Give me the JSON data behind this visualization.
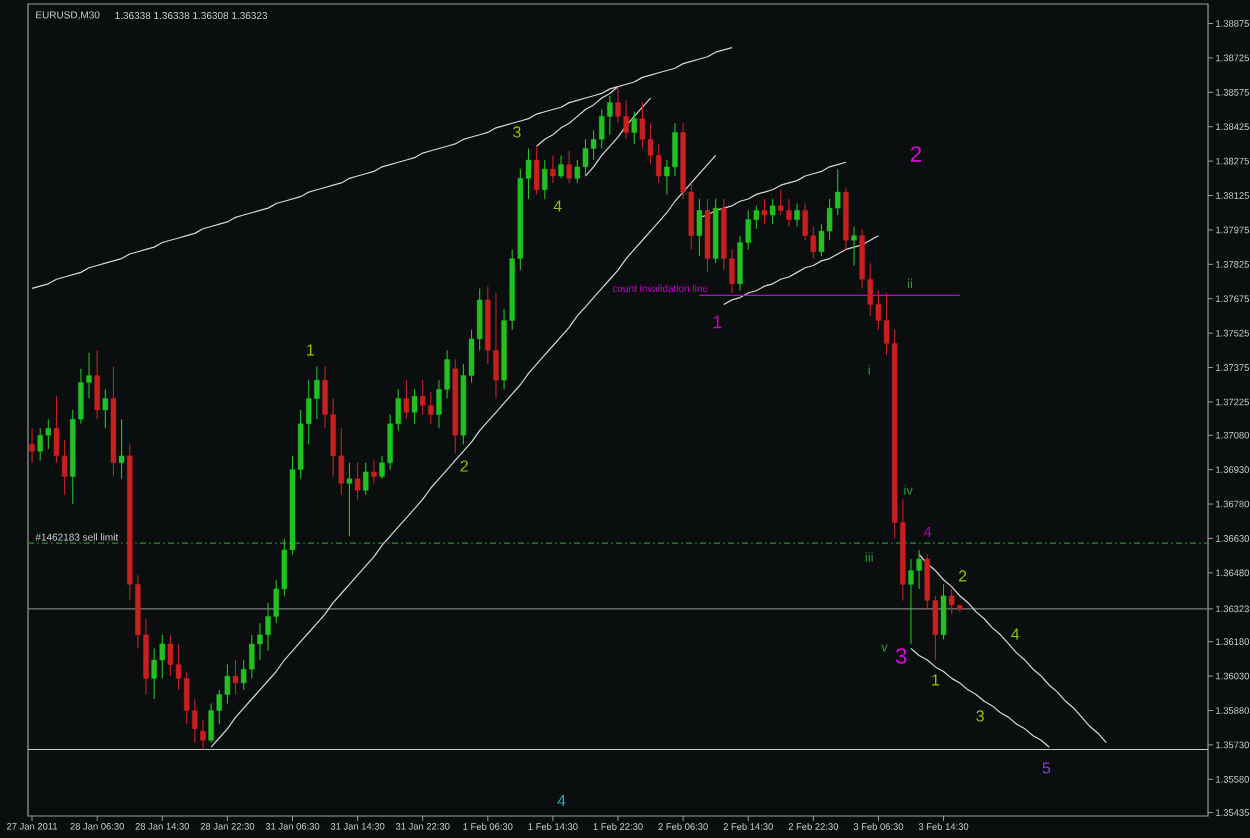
{
  "chart_data": {
    "type": "candlestick",
    "title": "EURUSD,M30",
    "subtitle": "1.36338 1.36338 1.36308 1.36323",
    "categories": [
      "27 Jan 2011",
      null,
      null,
      null,
      null,
      null,
      null,
      null,
      "28 Jan 06:30",
      null,
      null,
      null,
      null,
      null,
      null,
      null,
      "28 Jan 14:30",
      null,
      null,
      null,
      null,
      null,
      null,
      null,
      "28 Jan 22:30",
      null,
      null,
      null,
      null,
      null,
      null,
      null,
      "31 Jan 06:30",
      null,
      null,
      null,
      null,
      null,
      null,
      null,
      "31 Jan 14:30",
      null,
      null,
      null,
      null,
      null,
      null,
      null,
      "31 Jan 22:30",
      null,
      null,
      null,
      null,
      null,
      null,
      null,
      "1 Feb 06:30",
      null,
      null,
      null,
      null,
      null,
      null,
      null,
      "1 Feb 14:30",
      null,
      null,
      null,
      null,
      null,
      null,
      null,
      "1 Feb 22:30",
      null,
      null,
      null,
      null,
      null,
      null,
      null,
      "2 Feb 06:30",
      null,
      null,
      null,
      null,
      null,
      null,
      null,
      "2 Feb 14:30",
      null,
      null,
      null,
      null,
      null,
      null,
      null,
      "2 Feb 22:30",
      null,
      null,
      null,
      null,
      null,
      null,
      null,
      "3 Feb 06:30",
      null,
      null,
      null,
      null,
      null,
      null,
      null,
      "3 Feb 14:30",
      null,
      null,
      null,
      null,
      null,
      null,
      null,
      null,
      null,
      null,
      null,
      null,
      null,
      null,
      null,
      null,
      null,
      null,
      null,
      null,
      null,
      null,
      null,
      null,
      null,
      null,
      null,
      null,
      null,
      null,
      null,
      null
    ],
    "ohlc": [
      [
        1.3704,
        1.3711,
        1.3696,
        1.3701
      ],
      [
        1.3701,
        1.3711,
        1.3697,
        1.3708
      ],
      [
        1.3708,
        1.3715,
        1.3702,
        1.3711
      ],
      [
        1.3711,
        1.3725,
        1.3696,
        1.3699
      ],
      [
        1.3699,
        1.3706,
        1.3682,
        1.369
      ],
      [
        1.369,
        1.3719,
        1.3678,
        1.3715
      ],
      [
        1.3715,
        1.3737,
        1.3713,
        1.3731
      ],
      [
        1.3731,
        1.3744,
        1.3724,
        1.3734
      ],
      [
        1.3734,
        1.3745,
        1.3715,
        1.3719
      ],
      [
        1.3719,
        1.3728,
        1.3711,
        1.3724
      ],
      [
        1.3724,
        1.3738,
        1.369,
        1.3696
      ],
      [
        1.3696,
        1.3715,
        1.3689,
        1.3699
      ],
      [
        1.3699,
        1.3704,
        1.3636,
        1.3643
      ],
      [
        1.3643,
        1.3647,
        1.3615,
        1.3621
      ],
      [
        1.3621,
        1.3628,
        1.3595,
        1.3602
      ],
      [
        1.3602,
        1.3615,
        1.3593,
        1.361
      ],
      [
        1.361,
        1.3621,
        1.3602,
        1.3617
      ],
      [
        1.3617,
        1.3621,
        1.3603,
        1.3608
      ],
      [
        1.3608,
        1.3617,
        1.3597,
        1.3602
      ],
      [
        1.3602,
        1.3605,
        1.3582,
        1.3588
      ],
      [
        1.3588,
        1.3593,
        1.3574,
        1.358
      ],
      [
        1.3579,
        1.3584,
        1.3571,
        1.3575
      ],
      [
        1.3575,
        1.3591,
        1.3574,
        1.3588
      ],
      [
        1.3588,
        1.3597,
        1.3582,
        1.3595
      ],
      [
        1.3595,
        1.3608,
        1.3591,
        1.3603
      ],
      [
        1.3603,
        1.361,
        1.3595,
        1.36
      ],
      [
        1.36,
        1.361,
        1.3597,
        1.3606
      ],
      [
        1.3606,
        1.3621,
        1.3602,
        1.3617
      ],
      [
        1.3617,
        1.3626,
        1.361,
        1.3621
      ],
      [
        1.3621,
        1.3635,
        1.3614,
        1.3629
      ],
      [
        1.3629,
        1.3645,
        1.3626,
        1.3641
      ],
      [
        1.3641,
        1.3663,
        1.3638,
        1.3658
      ],
      [
        1.3658,
        1.3699,
        1.3656,
        1.3693
      ],
      [
        1.3693,
        1.3719,
        1.3689,
        1.3713
      ],
      [
        1.3713,
        1.3732,
        1.3704,
        1.3724
      ],
      [
        1.3724,
        1.3738,
        1.3715,
        1.3732
      ],
      [
        1.3732,
        1.3738,
        1.3711,
        1.3717
      ],
      [
        1.3717,
        1.3724,
        1.369,
        1.3699
      ],
      [
        1.3699,
        1.3711,
        1.3682,
        1.3687
      ],
      [
        1.3687,
        1.3696,
        1.3664,
        1.3689
      ],
      [
        1.3689,
        1.3696,
        1.368,
        1.3684
      ],
      [
        1.3684,
        1.3696,
        1.3682,
        1.3692
      ],
      [
        1.3692,
        1.3697,
        1.3687,
        1.369
      ],
      [
        1.369,
        1.3699,
        1.3689,
        1.3696
      ],
      [
        1.3696,
        1.3717,
        1.3693,
        1.3713
      ],
      [
        1.3713,
        1.3728,
        1.371,
        1.3724
      ],
      [
        1.3724,
        1.3732,
        1.3715,
        1.3718
      ],
      [
        1.3718,
        1.3728,
        1.3713,
        1.3725
      ],
      [
        1.3725,
        1.3732,
        1.3717,
        1.3721
      ],
      [
        1.3721,
        1.3727,
        1.3713,
        1.3717
      ],
      [
        1.3717,
        1.3732,
        1.3711,
        1.3728
      ],
      [
        1.3728,
        1.3745,
        1.3724,
        1.3741
      ],
      [
        1.3737,
        1.3741,
        1.37,
        1.3708
      ],
      [
        1.3708,
        1.3739,
        1.3704,
        1.3734
      ],
      [
        1.3734,
        1.3754,
        1.3731,
        1.375
      ],
      [
        1.375,
        1.3772,
        1.3745,
        1.3767
      ],
      [
        1.3767,
        1.3773,
        1.3739,
        1.3745
      ],
      [
        1.3745,
        1.377,
        1.3724,
        1.3732
      ],
      [
        1.3732,
        1.3763,
        1.3728,
        1.3758
      ],
      [
        1.3758,
        1.3789,
        1.3754,
        1.3785
      ],
      [
        1.3785,
        1.3824,
        1.378,
        1.382
      ],
      [
        1.382,
        1.3833,
        1.3811,
        1.3828
      ],
      [
        1.3828,
        1.3834,
        1.3813,
        1.3815
      ],
      [
        1.3815,
        1.3828,
        1.3811,
        1.3824
      ],
      [
        1.3824,
        1.383,
        1.3818,
        1.3821
      ],
      [
        1.3821,
        1.383,
        1.382,
        1.3826
      ],
      [
        1.3826,
        1.3832,
        1.3818,
        1.382
      ],
      [
        1.382,
        1.3828,
        1.3818,
        1.3825
      ],
      [
        1.3825,
        1.3837,
        1.3821,
        1.3833
      ],
      [
        1.3833,
        1.3841,
        1.3828,
        1.3837
      ],
      [
        1.3837,
        1.385,
        1.3833,
        1.3847
      ],
      [
        1.3847,
        1.3856,
        1.3839,
        1.3853
      ],
      [
        1.3853,
        1.386,
        1.3844,
        1.3847
      ],
      [
        1.3847,
        1.3854,
        1.3837,
        1.384
      ],
      [
        1.384,
        1.3849,
        1.3835,
        1.3846
      ],
      [
        1.3846,
        1.3853,
        1.3833,
        1.3837
      ],
      [
        1.3837,
        1.3844,
        1.3826,
        1.383
      ],
      [
        1.383,
        1.3835,
        1.3818,
        1.3821
      ],
      [
        1.3821,
        1.3828,
        1.3813,
        1.3825
      ],
      [
        1.3825,
        1.3844,
        1.3821,
        1.384
      ],
      [
        1.384,
        1.3844,
        1.3811,
        1.3814
      ],
      [
        1.3814,
        1.3818,
        1.3789,
        1.3795
      ],
      [
        1.3795,
        1.3811,
        1.3786,
        1.3806
      ],
      [
        1.3806,
        1.3811,
        1.3779,
        1.3785
      ],
      [
        1.3785,
        1.3811,
        1.3783,
        1.3807
      ],
      [
        1.3807,
        1.3811,
        1.378,
        1.3785
      ],
      [
        1.3785,
        1.3789,
        1.377,
        1.3774
      ],
      [
        1.3774,
        1.3795,
        1.3771,
        1.3792
      ],
      [
        1.3792,
        1.3806,
        1.3789,
        1.3802
      ],
      [
        1.3802,
        1.3808,
        1.3798,
        1.3806
      ],
      [
        1.3806,
        1.3811,
        1.38,
        1.3804
      ],
      [
        1.3804,
        1.3811,
        1.38,
        1.3808
      ],
      [
        1.3808,
        1.3815,
        1.3804,
        1.3806
      ],
      [
        1.3806,
        1.3811,
        1.3799,
        1.3802
      ],
      [
        1.3802,
        1.3809,
        1.3799,
        1.3806
      ],
      [
        1.3806,
        1.3809,
        1.3793,
        1.3795
      ],
      [
        1.3795,
        1.3799,
        1.3785,
        1.3788
      ],
      [
        1.3788,
        1.38,
        1.3786,
        1.3797
      ],
      [
        1.3797,
        1.3811,
        1.3793,
        1.3807
      ],
      [
        1.3807,
        1.3824,
        1.3804,
        1.3814
      ],
      [
        1.3814,
        1.3816,
        1.3789,
        1.3793
      ],
      [
        1.3793,
        1.3799,
        1.3782,
        1.3795
      ],
      [
        1.3795,
        1.3798,
        1.3772,
        1.3776
      ],
      [
        1.3776,
        1.3783,
        1.376,
        1.3765
      ],
      [
        1.3765,
        1.3771,
        1.3754,
        1.3758
      ],
      [
        1.3758,
        1.377,
        1.3743,
        1.3748
      ],
      [
        1.3748,
        1.3754,
        1.3663,
        1.367
      ],
      [
        1.367,
        1.368,
        1.3636,
        1.3643
      ],
      [
        1.3643,
        1.3654,
        1.3617,
        1.3649
      ],
      [
        1.3649,
        1.3658,
        1.3641,
        1.3654
      ],
      [
        1.3654,
        1.3656,
        1.3632,
        1.3636
      ],
      [
        1.3636,
        1.3638,
        1.361,
        1.3621
      ],
      [
        1.3621,
        1.3643,
        1.3619,
        1.3638
      ],
      [
        1.3638,
        1.3641,
        1.363,
        1.3634
      ],
      [
        1.36338,
        1.36338,
        1.36308,
        1.36323
      ],
      null,
      null,
      null,
      null,
      null,
      null,
      null,
      null,
      null,
      null,
      null,
      null,
      null,
      null,
      null,
      null,
      null,
      null,
      null,
      null,
      null,
      null,
      null,
      null,
      null,
      null,
      null,
      null,
      null,
      null
    ],
    "colors": [
      "#c82020",
      "#22c022",
      "#22c022",
      "#c82020",
      "#c82020",
      "#22c022",
      "#22c022",
      "#22c022",
      "#c82020",
      "#22c022",
      "#c82020",
      "#22c022",
      "#c82020",
      "#c82020",
      "#c82020",
      "#22c022",
      "#22c022",
      "#c82020",
      "#c82020",
      "#c82020",
      "#c82020",
      "#c82020",
      "#22c022",
      "#22c022",
      "#22c022",
      "#c82020",
      "#22c022",
      "#22c022",
      "#22c022",
      "#22c022",
      "#22c022",
      "#22c022",
      "#22c022",
      "#22c022",
      "#22c022",
      "#22c022",
      "#c82020",
      "#c82020",
      "#c82020",
      "#22c022",
      "#c82020",
      "#22c022",
      "#c82020",
      "#22c022",
      "#22c022",
      "#22c022",
      "#c82020",
      "#22c022",
      "#c82020",
      "#c82020",
      "#22c022",
      "#22c022",
      "#c82020",
      "#22c022",
      "#22c022",
      "#22c022",
      "#c82020",
      "#c82020",
      "#22c022",
      "#22c022",
      "#22c022",
      "#22c022",
      "#c82020",
      "#22c022",
      "#c82020",
      "#22c022",
      "#c82020",
      "#22c022",
      "#22c022",
      "#22c022",
      "#22c022",
      "#22c022",
      "#c82020",
      "#c82020",
      "#22c022",
      "#c82020",
      "#c82020",
      "#c82020",
      "#22c022",
      "#22c022",
      "#c82020",
      "#c82020",
      "#22c022",
      "#c82020",
      "#22c022",
      "#c82020",
      "#c82020",
      "#22c022",
      "#22c022",
      "#22c022",
      "#c82020",
      "#22c022",
      "#c82020",
      "#c82020",
      "#22c022",
      "#c82020",
      "#c82020",
      "#22c022",
      "#22c022",
      "#22c022",
      "#c82020",
      "#22c022",
      "#c82020",
      "#c82020",
      "#c82020",
      "#c82020",
      "#c82020",
      "#c82020",
      "#22c022",
      "#22c022",
      "#c82020",
      "#c82020",
      "#22c022",
      "#c82020",
      "#c82020",
      null,
      null,
      null,
      null,
      null,
      null,
      null,
      null,
      null,
      null,
      null,
      null,
      null,
      null,
      null,
      null,
      null,
      null,
      null,
      null,
      null,
      null,
      null,
      null,
      null,
      null,
      null,
      null,
      null,
      null
    ],
    "ylim": [
      1.3542,
      1.3896
    ],
    "yticks": [
      1.38875,
      1.38725,
      1.38575,
      1.38425,
      1.38275,
      1.38125,
      1.37975,
      1.37825,
      1.37675,
      1.37525,
      1.37375,
      1.37225,
      {
        "value": 1.3708,
        "label": "1.37080"
      },
      {
        "value": 1.3693,
        "label": "1.36930"
      },
      {
        "value": 1.3678,
        "label": "1.36780"
      },
      {
        "value": 1.3663,
        "label": "1.36630"
      },
      {
        "value": 1.3648,
        "label": "1.36480"
      },
      1.36323,
      {
        "value": 1.3618,
        "label": "1.36180"
      },
      {
        "value": 1.3603,
        "label": "1.36030"
      },
      {
        "value": 1.3588,
        "label": "1.35880"
      },
      {
        "value": 1.3573,
        "label": "1.35730"
      },
      {
        "value": 1.3558,
        "label": "1.35580"
      },
      1.35435
    ],
    "series": [
      {
        "type": "line",
        "color": "#d8d8d8",
        "values": [
          1.3772,
          1.3773,
          1.3774,
          1.3776,
          1.3777,
          1.3778,
          1.3779,
          1.3781,
          1.3782,
          1.3783,
          1.3784,
          1.3785,
          1.3787,
          1.3788,
          1.3789,
          1.379,
          1.3792,
          1.3793,
          1.3794,
          1.3795,
          1.3796,
          1.3798,
          1.3799,
          1.38,
          1.3801,
          1.3803,
          1.3804,
          1.3805,
          1.3806,
          1.3807,
          1.3809,
          1.381,
          1.3811,
          1.3812,
          1.3814,
          1.3815,
          1.3816,
          1.3817,
          1.3818,
          1.382,
          1.3821,
          1.3822,
          1.3823,
          1.3825,
          1.3826,
          1.3827,
          1.3828,
          1.3829,
          1.3831,
          1.3832,
          1.3833,
          1.3834,
          1.3835,
          1.3837,
          1.3838,
          1.3839,
          1.384,
          1.3842,
          1.3843,
          1.3844,
          1.3845,
          1.3846,
          1.3848,
          1.3849,
          1.385,
          1.3851,
          1.3853,
          1.3854,
          1.3855,
          1.3856,
          1.3857,
          1.3859,
          1.386,
          1.3861,
          1.3862,
          1.3864,
          1.3865,
          1.3866,
          1.3867,
          1.3868,
          1.387,
          1.3871,
          1.3872,
          1.3873,
          1.3875,
          1.3876,
          1.3877,
          null,
          null,
          null,
          null,
          null,
          null,
          null,
          null,
          null,
          null,
          null,
          null,
          null,
          null,
          null,
          null,
          null,
          null,
          null,
          null,
          null,
          null,
          null,
          null,
          null,
          null,
          null,
          null,
          null,
          null,
          null,
          null,
          null,
          null,
          null,
          null,
          null,
          null,
          null,
          null,
          null,
          null,
          null,
          null,
          null,
          null,
          null,
          null,
          null,
          null,
          null,
          null,
          null,
          null,
          null,
          null,
          null,
          null
        ]
      },
      {
        "type": "line",
        "color": "#d8d8d8",
        "values": [
          null,
          null,
          null,
          null,
          null,
          null,
          null,
          null,
          null,
          null,
          null,
          null,
          null,
          null,
          null,
          null,
          null,
          null,
          null,
          null,
          null,
          null,
          1.3572,
          1.3576,
          1.358,
          1.3585,
          1.3589,
          1.3593,
          1.3597,
          1.3601,
          1.3605,
          1.361,
          1.3614,
          1.3618,
          1.3622,
          1.3626,
          1.363,
          1.3635,
          1.3639,
          1.3643,
          1.3647,
          1.3651,
          1.3655,
          1.366,
          1.3664,
          1.3668,
          1.3672,
          1.3676,
          1.368,
          1.3685,
          1.3689,
          1.3693,
          1.3697,
          1.3701,
          1.3705,
          1.371,
          1.3714,
          1.3718,
          1.3722,
          1.3726,
          1.373,
          1.3735,
          1.3739,
          1.3743,
          1.3747,
          1.3751,
          1.3755,
          1.376,
          1.3764,
          1.3768,
          1.3772,
          1.3776,
          1.378,
          1.3785,
          1.3789,
          1.3793,
          1.3797,
          1.3801,
          1.3805,
          1.381,
          1.3814,
          1.3818,
          1.3822,
          1.3826,
          1.383,
          null,
          null,
          null,
          null,
          null,
          null,
          null,
          null,
          null,
          null,
          null,
          null,
          null,
          null,
          null,
          null,
          null,
          null,
          null,
          null,
          null,
          null,
          null,
          null,
          null,
          null,
          null,
          null,
          null,
          null,
          null,
          null,
          null,
          null,
          null,
          null,
          null,
          null,
          null,
          null,
          null,
          null,
          null,
          null,
          null,
          null,
          null,
          null,
          null,
          null,
          null,
          null,
          null,
          null,
          null,
          null,
          null,
          null,
          null,
          null
        ]
      },
      {
        "type": "line",
        "color": "#d8d8d8",
        "values": [
          null,
          null,
          null,
          null,
          null,
          null,
          null,
          null,
          null,
          null,
          null,
          null,
          null,
          null,
          null,
          null,
          null,
          null,
          null,
          null,
          null,
          null,
          null,
          null,
          null,
          null,
          null,
          null,
          null,
          null,
          null,
          null,
          null,
          null,
          null,
          null,
          null,
          null,
          null,
          null,
          null,
          null,
          null,
          null,
          null,
          null,
          null,
          null,
          null,
          null,
          null,
          null,
          null,
          null,
          null,
          null,
          null,
          null,
          null,
          null,
          null,
          null,
          1.3834,
          1.3837,
          1.3839,
          1.3842,
          1.3844,
          1.3847,
          1.385,
          1.3852,
          1.3855,
          1.3857,
          1.386,
          null,
          null,
          null,
          null,
          null,
          null,
          null,
          null,
          null,
          null,
          null,
          null,
          null,
          null,
          null,
          null,
          null,
          null,
          null,
          null,
          null,
          null,
          null,
          null,
          null,
          null,
          null,
          null,
          null,
          null,
          null,
          null,
          null,
          null,
          null,
          null,
          null,
          null,
          null,
          null,
          null,
          null,
          null,
          null,
          null,
          null,
          null,
          null,
          null,
          null,
          null,
          null,
          null,
          null,
          null,
          null,
          null,
          null,
          null,
          null,
          null,
          null,
          null,
          null,
          null,
          null,
          null,
          null,
          null,
          null,
          null,
          null
        ]
      },
      {
        "type": "line",
        "color": "#d8d8d8",
        "values": [
          null,
          null,
          null,
          null,
          null,
          null,
          null,
          null,
          null,
          null,
          null,
          null,
          null,
          null,
          null,
          null,
          null,
          null,
          null,
          null,
          null,
          null,
          null,
          null,
          null,
          null,
          null,
          null,
          null,
          null,
          null,
          null,
          null,
          null,
          null,
          null,
          null,
          null,
          null,
          null,
          null,
          null,
          null,
          null,
          null,
          null,
          null,
          null,
          null,
          null,
          null,
          null,
          null,
          null,
          null,
          null,
          null,
          null,
          null,
          null,
          null,
          null,
          null,
          null,
          null,
          null,
          null,
          null,
          1.3821,
          1.3825,
          1.383,
          1.3834,
          1.3838,
          1.3843,
          1.3847,
          1.3851,
          1.3855,
          null,
          null,
          null,
          null,
          null,
          null,
          null,
          null,
          null,
          null,
          null,
          null,
          null,
          null,
          null,
          null,
          null,
          null,
          null,
          null,
          null,
          null,
          null,
          null,
          null,
          null,
          null,
          null,
          null,
          null,
          null,
          null,
          null,
          null,
          null,
          null,
          null,
          null,
          null,
          null,
          null,
          null,
          null,
          null,
          null,
          null,
          null,
          null,
          null,
          null,
          null,
          null,
          null,
          null,
          null,
          null,
          null,
          null,
          null,
          null,
          null,
          null,
          null,
          null,
          null,
          null,
          null,
          null
        ]
      },
      {
        "type": "line",
        "color": "#d8d8d8",
        "values": [
          null,
          null,
          null,
          null,
          null,
          null,
          null,
          null,
          null,
          null,
          null,
          null,
          null,
          null,
          null,
          null,
          null,
          null,
          null,
          null,
          null,
          null,
          null,
          null,
          null,
          null,
          null,
          null,
          null,
          null,
          null,
          null,
          null,
          null,
          null,
          null,
          null,
          null,
          null,
          null,
          null,
          null,
          null,
          null,
          null,
          null,
          null,
          null,
          null,
          null,
          null,
          null,
          null,
          null,
          null,
          null,
          null,
          null,
          null,
          null,
          null,
          null,
          null,
          null,
          null,
          null,
          null,
          null,
          null,
          null,
          null,
          null,
          null,
          null,
          null,
          null,
          null,
          null,
          null,
          null,
          null,
          null,
          1.3803,
          1.3804,
          1.3806,
          1.3807,
          1.3808,
          1.381,
          1.3811,
          1.3813,
          1.3814,
          1.3815,
          1.3817,
          1.3818,
          1.3819,
          1.3821,
          1.3822,
          1.3823,
          1.3825,
          1.3826,
          1.3827,
          null,
          null,
          null,
          null,
          null,
          null,
          null,
          null,
          null,
          null,
          null,
          null,
          null,
          null,
          null,
          null,
          null,
          null,
          null,
          null,
          null,
          null,
          null,
          null,
          null,
          null,
          null,
          null,
          null,
          null,
          null,
          null,
          null,
          null,
          null,
          null,
          null,
          null,
          null,
          null,
          null,
          null,
          null,
          null
        ]
      },
      {
        "type": "line",
        "color": "#d8d8d8",
        "values": [
          null,
          null,
          null,
          null,
          null,
          null,
          null,
          null,
          null,
          null,
          null,
          null,
          null,
          null,
          null,
          null,
          null,
          null,
          null,
          null,
          null,
          null,
          null,
          null,
          null,
          null,
          null,
          null,
          null,
          null,
          null,
          null,
          null,
          null,
          null,
          null,
          null,
          null,
          null,
          null,
          null,
          null,
          null,
          null,
          null,
          null,
          null,
          null,
          null,
          null,
          null,
          null,
          null,
          null,
          null,
          null,
          null,
          null,
          null,
          null,
          null,
          null,
          null,
          null,
          null,
          null,
          null,
          null,
          null,
          null,
          null,
          null,
          null,
          null,
          null,
          null,
          null,
          null,
          null,
          null,
          null,
          null,
          null,
          null,
          null,
          1.3765,
          1.3767,
          1.3768,
          1.377,
          1.3771,
          1.3773,
          1.3774,
          1.3776,
          1.3777,
          1.3779,
          1.3781,
          1.3782,
          1.3784,
          1.3785,
          1.3787,
          1.3789,
          1.379,
          1.3791,
          1.3793,
          1.3795,
          null,
          null,
          null,
          null,
          null,
          null,
          null,
          null,
          null,
          null,
          null,
          null,
          null,
          null,
          null,
          null,
          null,
          null,
          null,
          null,
          null,
          null,
          null,
          null,
          null,
          null,
          null,
          null,
          null,
          null,
          null,
          null,
          null,
          null,
          null,
          null,
          null,
          null,
          null,
          null
        ]
      },
      {
        "type": "line",
        "color": "#d8d8d8",
        "values": [
          null,
          null,
          null,
          null,
          null,
          null,
          null,
          null,
          null,
          null,
          null,
          null,
          null,
          null,
          null,
          null,
          null,
          null,
          null,
          null,
          null,
          null,
          null,
          null,
          null,
          null,
          null,
          null,
          null,
          null,
          null,
          null,
          null,
          null,
          null,
          null,
          null,
          null,
          null,
          null,
          null,
          null,
          null,
          null,
          null,
          null,
          null,
          null,
          null,
          null,
          null,
          null,
          null,
          null,
          null,
          null,
          null,
          null,
          null,
          null,
          null,
          null,
          null,
          null,
          null,
          null,
          null,
          null,
          null,
          null,
          null,
          null,
          null,
          null,
          null,
          null,
          null,
          null,
          null,
          null,
          null,
          null,
          null,
          null,
          null,
          null,
          null,
          null,
          null,
          null,
          null,
          null,
          null,
          null,
          null,
          null,
          null,
          null,
          null,
          null,
          null,
          null,
          null,
          null,
          null,
          null,
          null,
          null,
          null,
          1.3656,
          1.3652,
          1.3649,
          1.3645,
          1.3642,
          1.3638,
          1.3635,
          1.3631,
          1.3628,
          1.3624,
          1.3621,
          1.3617,
          1.3613,
          1.361,
          1.3606,
          1.3603,
          1.3599,
          1.3596,
          1.3592,
          1.3589,
          1.3585,
          1.3581,
          1.3578,
          1.3574,
          null,
          null,
          null,
          null,
          null,
          null,
          null,
          null,
          null,
          null,
          null,
          null
        ]
      },
      {
        "type": "line",
        "color": "#d8d8d8",
        "values": [
          null,
          null,
          null,
          null,
          null,
          null,
          null,
          null,
          null,
          null,
          null,
          null,
          null,
          null,
          null,
          null,
          null,
          null,
          null,
          null,
          null,
          null,
          null,
          null,
          null,
          null,
          null,
          null,
          null,
          null,
          null,
          null,
          null,
          null,
          null,
          null,
          null,
          null,
          null,
          null,
          null,
          null,
          null,
          null,
          null,
          null,
          null,
          null,
          null,
          null,
          null,
          null,
          null,
          null,
          null,
          null,
          null,
          null,
          null,
          null,
          null,
          null,
          null,
          null,
          null,
          null,
          null,
          null,
          null,
          null,
          null,
          null,
          null,
          null,
          null,
          null,
          null,
          null,
          null,
          null,
          null,
          null,
          null,
          null,
          null,
          null,
          null,
          null,
          null,
          null,
          null,
          null,
          null,
          null,
          null,
          null,
          null,
          null,
          null,
          null,
          null,
          null,
          null,
          null,
          null,
          null,
          null,
          null,
          1.3615,
          1.3612,
          1.361,
          1.3607,
          1.3605,
          1.3602,
          1.36,
          1.3597,
          1.3595,
          1.3592,
          1.359,
          1.3587,
          1.3585,
          1.3582,
          1.358,
          1.3577,
          1.3575,
          1.3572,
          null,
          null,
          null,
          null,
          null,
          null,
          null,
          null,
          null,
          null,
          null,
          null,
          null,
          null,
          null,
          null,
          null,
          null,
          null
        ]
      },
      {
        "type": "line",
        "name": "count invalidation line",
        "color": "#c800c8",
        "values": [
          null,
          null,
          null,
          null,
          null,
          null,
          null,
          null,
          null,
          null,
          null,
          null,
          null,
          null,
          null,
          null,
          null,
          null,
          null,
          null,
          null,
          null,
          null,
          null,
          null,
          null,
          null,
          null,
          null,
          null,
          null,
          null,
          null,
          null,
          null,
          null,
          null,
          null,
          null,
          null,
          null,
          null,
          null,
          null,
          null,
          null,
          null,
          null,
          null,
          null,
          null,
          null,
          null,
          null,
          null,
          null,
          null,
          null,
          null,
          null,
          null,
          null,
          null,
          null,
          null,
          null,
          null,
          null,
          null,
          null,
          null,
          null,
          null,
          null,
          null,
          null,
          null,
          null,
          null,
          null,
          null,
          null,
          1.3769,
          1.3769,
          1.3769,
          1.3769,
          1.3769,
          1.3769,
          1.3769,
          1.3769,
          1.3769,
          1.3769,
          1.3769,
          1.3769,
          1.3769,
          1.3769,
          1.3769,
          1.3769,
          1.3769,
          1.3769,
          1.3769,
          1.3769,
          1.3769,
          1.3769,
          1.3769,
          1.3769,
          1.3769,
          1.3769,
          1.3769,
          1.3769,
          1.3769,
          1.3769,
          1.3769,
          1.3769,
          1.3769,
          null,
          null,
          null,
          null,
          null,
          null,
          null,
          null,
          null,
          null,
          null,
          null,
          null,
          null,
          null,
          null,
          null,
          null,
          null,
          null,
          null,
          null,
          null,
          null,
          null,
          null,
          null,
          null,
          null,
          null
        ]
      }
    ],
    "ref_lines": [
      {
        "axis": "y",
        "value": 1.3661,
        "label": "#1462183 sell limit",
        "color": "#2e8b2e",
        "line_style": "dashed"
      },
      {
        "axis": "y",
        "value": 1.36323,
        "color": "#808080"
      },
      {
        "axis": "y",
        "value": 1.3571,
        "color": "#c8c8c8"
      }
    ],
    "annotations": [
      "1",
      "2",
      "3",
      "4",
      "1",
      "2",
      "i",
      "ii",
      "iii",
      "iv",
      "v",
      "3",
      "4",
      "2",
      "4",
      "1",
      "3",
      "5",
      "4"
    ]
  }
}
